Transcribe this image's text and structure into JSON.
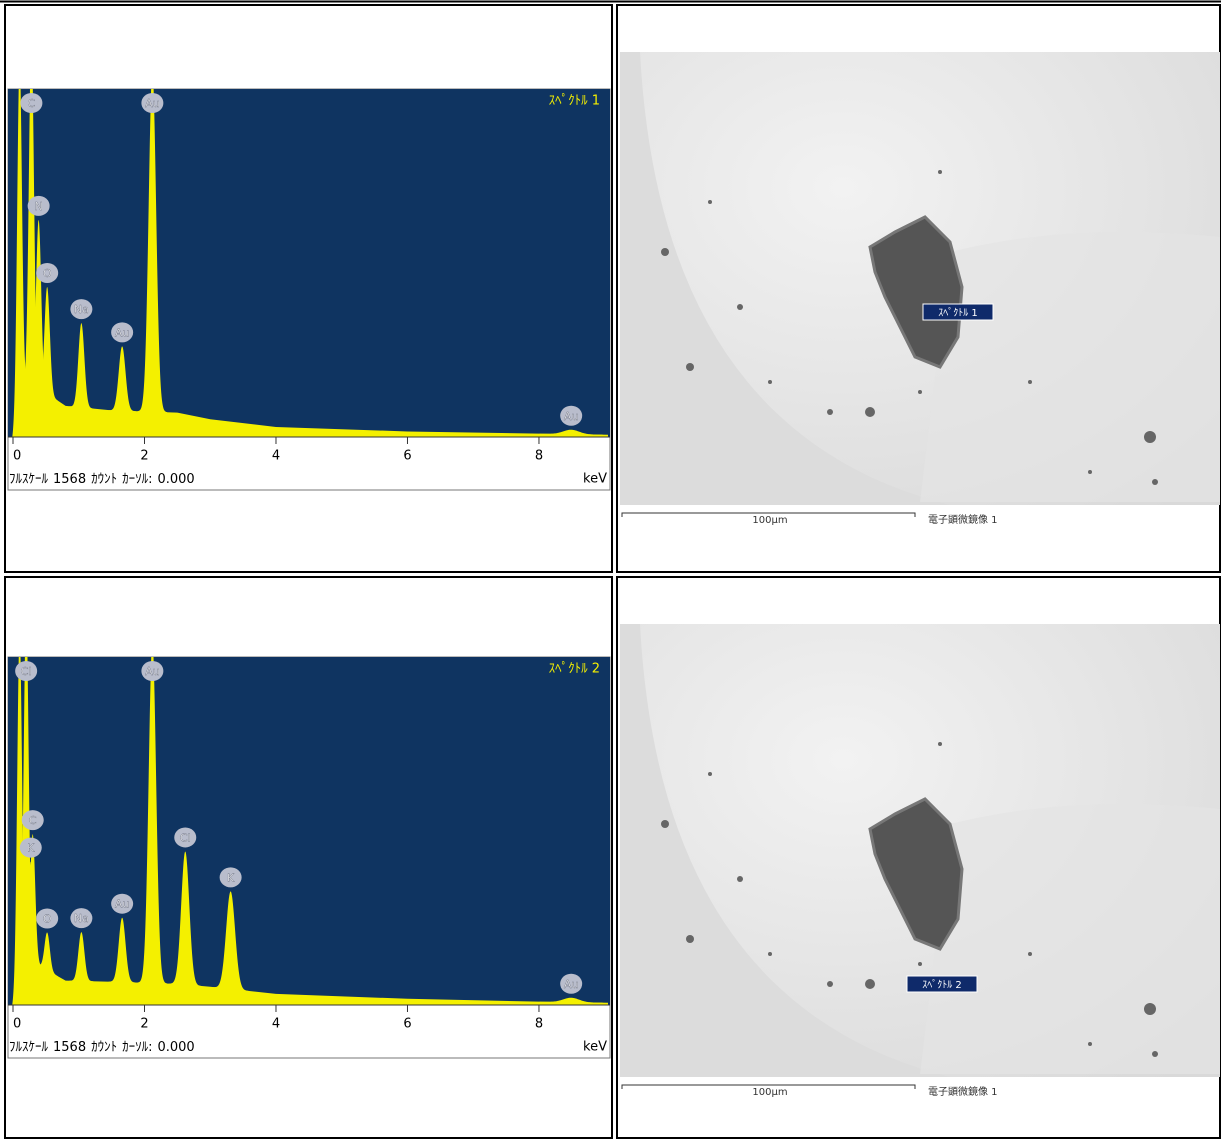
{
  "panels": [
    {
      "spectrum": {
        "type": "area",
        "title": "ｽﾍﾟｸﾄﾙ 1",
        "xlim": [
          0,
          9.05
        ],
        "ylim": [
          0,
          1568
        ],
        "xticks": [
          0,
          2,
          4,
          6,
          8
        ],
        "x_unit": "keV",
        "footer": {
          "full_scale_label": "ﾌﾙｽｹｰﾙ",
          "full_scale": 1568,
          "count_unit": "ｶｳﾝﾄ",
          "cursor_label": "ｶｰｿﾙ:",
          "cursor": {
            "value": 0,
            "label": "0.000"
          }
        },
        "continuum": {
          "x": [
            0,
            0.2,
            0.5,
            0.8,
            1.5,
            2.5,
            3,
            4,
            6,
            8,
            9.05
          ],
          "y": [
            0,
            250,
            200,
            140,
            120,
            110,
            80,
            45,
            25,
            15,
            10
          ]
        },
        "peaks": [
          {
            "label": null,
            "energy": 0.1,
            "height": 1568
          },
          {
            "label": "C",
            "energy": 0.28,
            "height": 1568
          },
          {
            "label": "N",
            "energy": 0.39,
            "height": 760
          },
          {
            "label": "O",
            "energy": 0.52,
            "height": 480
          },
          {
            "label": "Na",
            "energy": 1.04,
            "height": 380
          },
          {
            "label": "Au",
            "energy": 1.66,
            "height": 290
          },
          {
            "label": "Au",
            "energy": 2.12,
            "height": 1540
          },
          {
            "label": "Au",
            "energy": 8.49,
            "height": 20
          }
        ]
      },
      "image": {
        "marker_label": "ｽﾍﾟｸﾄﾙ 1",
        "scale_label": "100μm",
        "caption": "電子顕微鏡像 1"
      }
    },
    {
      "spectrum": {
        "type": "area",
        "title": "ｽﾍﾟｸﾄﾙ 2",
        "xlim": [
          0,
          9.05
        ],
        "ylim": [
          0,
          1568
        ],
        "xticks": [
          0,
          2,
          4,
          6,
          8
        ],
        "x_unit": "keV",
        "footer": {
          "full_scale_label": "ﾌﾙｽｹｰﾙ",
          "full_scale": 1568,
          "count_unit": "ｶｳﾝﾄ",
          "cursor_label": "ｶｰｿﾙ:",
          "cursor": {
            "value": 0,
            "label": "0.000"
          }
        },
        "continuum": {
          "x": [
            0,
            0.2,
            0.5,
            0.8,
            1.5,
            2.5,
            3,
            4,
            6,
            8,
            9.05
          ],
          "y": [
            0,
            220,
            160,
            110,
            105,
            95,
            82,
            50,
            28,
            15,
            10
          ]
        },
        "peaks": [
          {
            "label": null,
            "energy": 0.1,
            "height": 1568
          },
          {
            "label": "Cl",
            "energy": 0.2,
            "height": 1568
          },
          {
            "label": "C",
            "energy": 0.3,
            "height": 570
          },
          {
            "label": "K",
            "energy": 0.27,
            "height": 440
          },
          {
            "label": "O",
            "energy": 0.52,
            "height": 170
          },
          {
            "label": "Na",
            "energy": 1.04,
            "height": 220
          },
          {
            "label": "Au",
            "energy": 1.66,
            "height": 290
          },
          {
            "label": "Au",
            "energy": 2.12,
            "height": 1540
          },
          {
            "label": "Cl",
            "energy": 2.62,
            "height": 600
          },
          {
            "label": "K",
            "energy": 3.31,
            "height": 440
          },
          {
            "label": "Au",
            "energy": 8.49,
            "height": 20
          }
        ]
      },
      "image": {
        "marker_label": "ｽﾍﾟｸﾄﾙ 2",
        "scale_label": "100μm",
        "caption": "電子顕微鏡像 1"
      }
    }
  ]
}
